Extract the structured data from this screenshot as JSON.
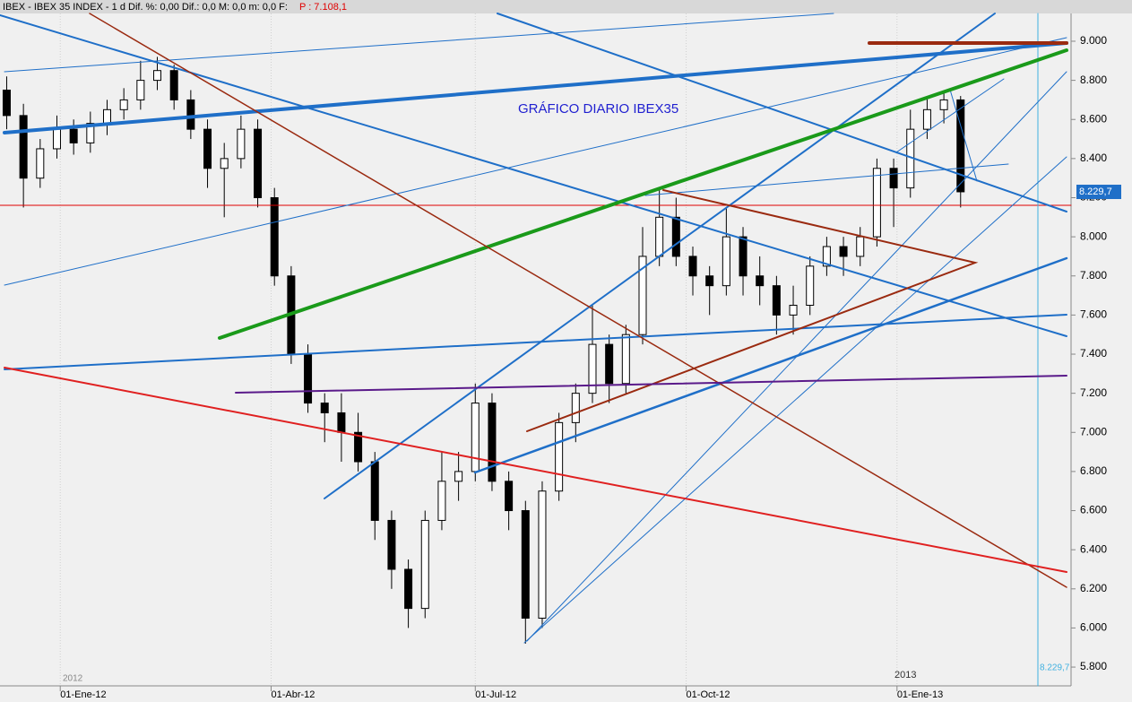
{
  "chart_data": {
    "type": "candlestick",
    "header": "IBEX - IBEX 35 INDEX - 1 d Dif. %: 0,00 Dif.: 0,0 M: 0,0 m: 0,0 F:",
    "header_price": "P : 7.108,1",
    "title": "GRÁFICO DIARIO IBEX35",
    "year_labels": [
      "2012",
      "2013"
    ],
    "x": [
      2,
      7,
      12,
      17,
      22,
      27,
      32,
      37,
      42,
      47,
      52,
      57,
      62,
      67,
      72,
      77,
      82,
      87,
      92,
      97,
      102,
      107,
      112,
      117,
      122,
      127,
      132,
      137,
      142,
      147,
      152,
      157,
      162,
      167,
      172,
      177,
      182,
      187,
      192,
      197,
      202,
      207,
      212,
      217,
      222,
      227,
      232,
      237,
      242,
      247,
      252,
      257,
      262,
      267,
      272,
      277,
      282,
      287
    ],
    "open": [
      8750,
      8620,
      8300,
      8450,
      8550,
      8480,
      8580,
      8650,
      8700,
      8800,
      8850,
      8700,
      8550,
      8350,
      8400,
      8550,
      8200,
      7800,
      7400,
      7150,
      7100,
      7000,
      6850,
      6550,
      6300,
      6100,
      6550,
      6750,
      6800,
      7150,
      6750,
      6600,
      6050,
      6700,
      7050,
      7200,
      7450,
      7250,
      7500,
      7900,
      8100,
      7900,
      7800,
      7750,
      8000,
      7800,
      7750,
      7600,
      7650,
      7850,
      7950,
      7900,
      8000,
      8350,
      8250,
      8550,
      8650,
      8700
    ],
    "high": [
      8820,
      8680,
      8500,
      8620,
      8600,
      8640,
      8700,
      8760,
      8900,
      8920,
      8880,
      8750,
      8600,
      8480,
      8620,
      8600,
      8250,
      7850,
      7450,
      7200,
      7200,
      7100,
      6900,
      6600,
      6350,
      6600,
      6900,
      6900,
      7250,
      7200,
      6800,
      6650,
      6750,
      7100,
      7250,
      7650,
      7500,
      7550,
      8050,
      8250,
      8200,
      7950,
      7850,
      8150,
      8050,
      7900,
      7800,
      7750,
      7900,
      8000,
      8000,
      8050,
      8400,
      8400,
      8650,
      8720,
      8750,
      8720
    ],
    "low": [
      8550,
      8150,
      8250,
      8400,
      8420,
      8430,
      8520,
      8600,
      8650,
      8750,
      8650,
      8500,
      8250,
      8100,
      8350,
      8150,
      7750,
      7350,
      7100,
      6950,
      6850,
      6800,
      6450,
      6200,
      6000,
      6050,
      6500,
      6650,
      6750,
      6700,
      6500,
      5920,
      6000,
      6650,
      6950,
      7150,
      7150,
      7200,
      7450,
      7850,
      7850,
      7700,
      7600,
      7700,
      7700,
      7650,
      7500,
      7500,
      7600,
      7800,
      7800,
      7850,
      7950,
      8050,
      8200,
      8500,
      8580,
      8150
    ],
    "close": [
      8620,
      8300,
      8450,
      8550,
      8480,
      8580,
      8650,
      8700,
      8800,
      8850,
      8700,
      8550,
      8350,
      8400,
      8550,
      8200,
      7800,
      7400,
      7150,
      7100,
      7000,
      6850,
      6550,
      6300,
      6100,
      6550,
      6750,
      6800,
      7150,
      6750,
      6600,
      6050,
      6700,
      7050,
      7200,
      7450,
      7250,
      7500,
      7900,
      8100,
      7900,
      7800,
      7750,
      8000,
      7800,
      7750,
      7600,
      7650,
      7850,
      7950,
      7900,
      8000,
      8350,
      8250,
      8550,
      8650,
      8700,
      8230
    ],
    "last_price": {
      "value": 8229.7,
      "label": "8.229,7"
    },
    "xlim": [
      0,
      320
    ],
    "xticks": [
      {
        "value": 18,
        "label": "01-Ene-12"
      },
      {
        "value": 81,
        "label": "01-Abr-12"
      },
      {
        "value": 142,
        "label": "01-Jul-12"
      },
      {
        "value": 205,
        "label": "01-Oct-12"
      },
      {
        "value": 268,
        "label": "01-Ene-13"
      }
    ],
    "ylim": [
      5704,
      9142
    ],
    "yticks": [
      {
        "value": 5800,
        "label": "5.800"
      },
      {
        "value": 6000,
        "label": "6.000"
      },
      {
        "value": 6200,
        "label": "6.200"
      },
      {
        "value": 6400,
        "label": "6.400"
      },
      {
        "value": 6600,
        "label": "6.600"
      },
      {
        "value": 6800,
        "label": "6.800"
      },
      {
        "value": 7000,
        "label": "7.000"
      },
      {
        "value": 7200,
        "label": "7.200"
      },
      {
        "value": 7400,
        "label": "7.400"
      },
      {
        "value": 7600,
        "label": "7.600"
      },
      {
        "value": 7800,
        "label": "7.800"
      },
      {
        "value": 8000,
        "label": "8.000"
      },
      {
        "value": 8200,
        "label": "8.200"
      },
      {
        "value": 8400,
        "label": "8.400"
      },
      {
        "value": 8600,
        "label": "8.600"
      },
      {
        "value": 8800,
        "label": "8.800"
      },
      {
        "value": 9000,
        "label": "9.000"
      }
    ],
    "up_color": "#ffffff",
    "down_color": "#000000"
  }
}
